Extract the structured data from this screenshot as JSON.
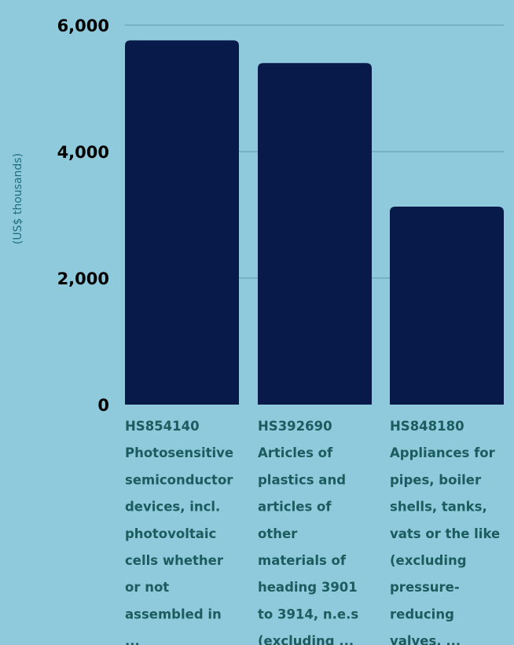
{
  "chart_data": {
    "type": "bar",
    "title": "",
    "xlabel": "",
    "ylabel": "(US$ thousands)",
    "ylim": [
      0,
      6000
    ],
    "yticks": [
      0,
      2000,
      4000,
      6000
    ],
    "ytick_labels": [
      "0",
      "2,000",
      "4,000",
      "6,000"
    ],
    "grid": true,
    "categories": [
      "HS854140",
      "HS392690",
      "HS848180"
    ],
    "category_label_lines": [
      [
        "HS854140",
        "Photosensitive",
        "semiconductor",
        "devices, incl.",
        "photovoltaic",
        "cells whether",
        "or not",
        "assembled in",
        "..."
      ],
      [
        "HS392690",
        "Articles of",
        "plastics and",
        "articles of",
        "other",
        "materials of",
        "heading 3901",
        "to 3914, n.e.s",
        "(excluding ..."
      ],
      [
        "HS848180",
        "Appliances for",
        "pipes, boiler",
        "shells, tanks,",
        "vats or the like",
        "(excluding",
        "pressure-",
        "reducing",
        "valves, ..."
      ]
    ],
    "values": [
      5760,
      5400,
      3130
    ],
    "colors": {
      "background": "#8ecadb",
      "bar": "#071a4a",
      "grid": "#5e9aa8",
      "category_text": "#1b5c5e",
      "axis_title": "#1f6f7f",
      "tick_text": "#000000"
    }
  }
}
